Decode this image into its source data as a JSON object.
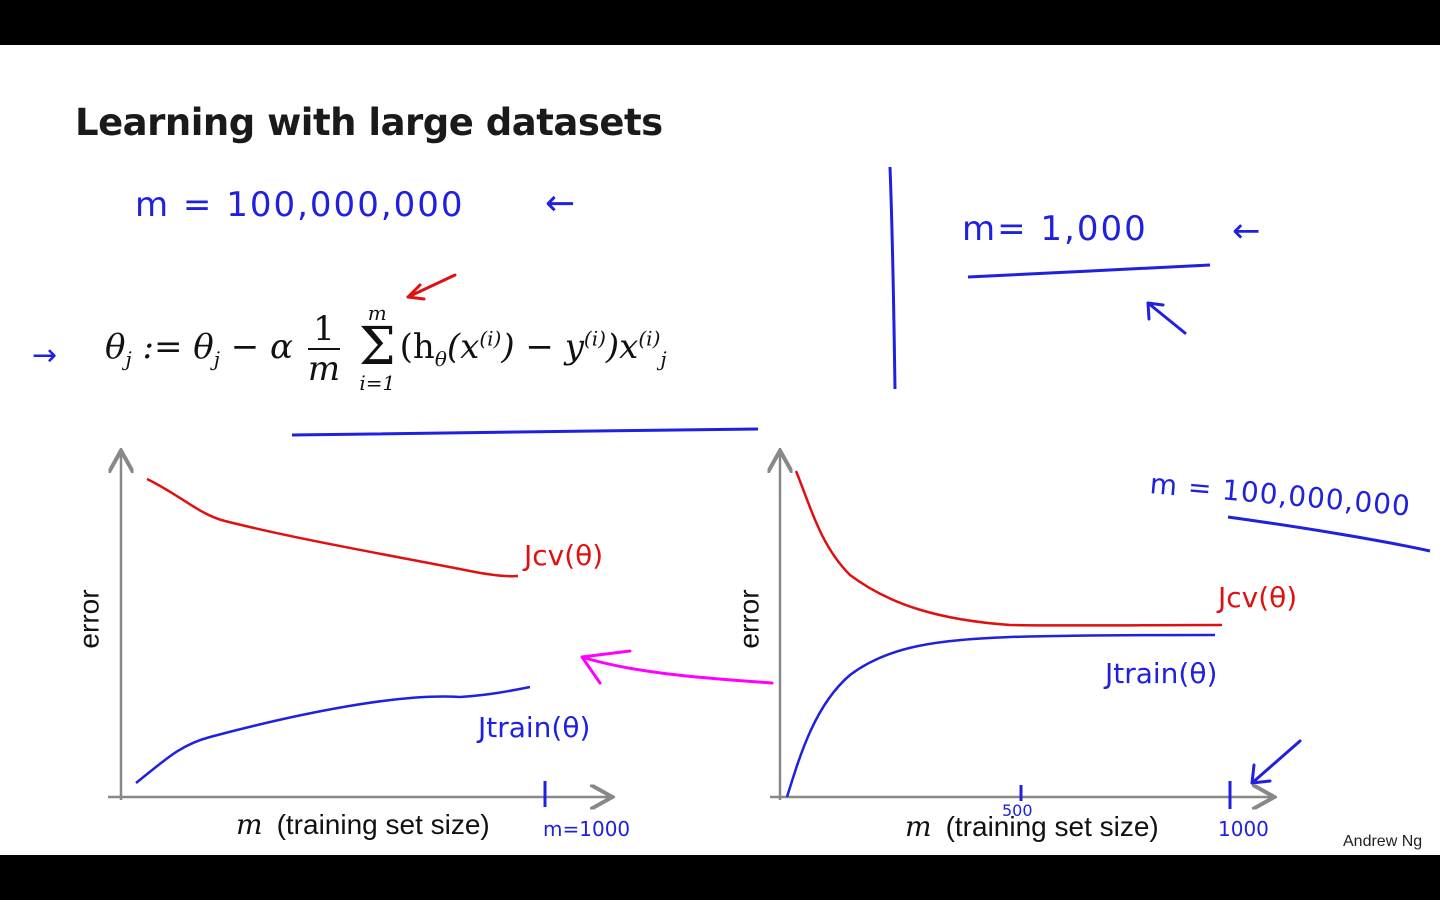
{
  "slide": {
    "title": "Learning with large datasets",
    "author": "Andrew Ng"
  },
  "annotations": {
    "m_large": "m = 100,000,000",
    "m_small": "m= 1,000",
    "m_right": "m = 100,000,000",
    "arrow_left": "←",
    "arrow_right": "→"
  },
  "formula": {
    "lhs": "θ",
    "lhs_sub": "j",
    "assign": " := θ",
    "assign_sub": "j",
    "minus_alpha": " − α",
    "frac_num": "1",
    "frac_den": "m",
    "sum_top": "m",
    "sum_sym": "Σ",
    "sum_bot": "i=1",
    "body_1": "(h",
    "body_h_sub": "θ",
    "body_2": "(x",
    "body_x_sup": "(i)",
    "body_3": ") − y",
    "body_y_sup": "(i)",
    "body_4": ")x",
    "body_x2_sup": "(i)",
    "body_x2_sub": "j"
  },
  "plots": [
    {
      "ylabel": "error",
      "xlabel_var": "m",
      "xlabel_text": "(training set size)",
      "tick_note": "m=1000",
      "curve_labels": {
        "cv": "Jcv(θ)",
        "train": "Jtrain(θ)"
      },
      "colors": {
        "cv": "#e01010",
        "train": "#2020e0",
        "axis": "#888888"
      }
    },
    {
      "ylabel": "error",
      "xlabel_var": "m",
      "xlabel_text": "(training set size)",
      "tick_500": "500",
      "tick_1000": "1000",
      "curve_labels": {
        "cv": "Jcv(θ)",
        "train": "Jtrain(θ)"
      },
      "colors": {
        "cv": "#e01010",
        "train": "#2020e0",
        "axis": "#888888"
      }
    }
  ],
  "colors": {
    "ink_blue": "#2020e0",
    "ink_red": "#e01010",
    "ink_magenta": "#ff00ff",
    "text": "#111111",
    "letterbox": "#000000"
  }
}
